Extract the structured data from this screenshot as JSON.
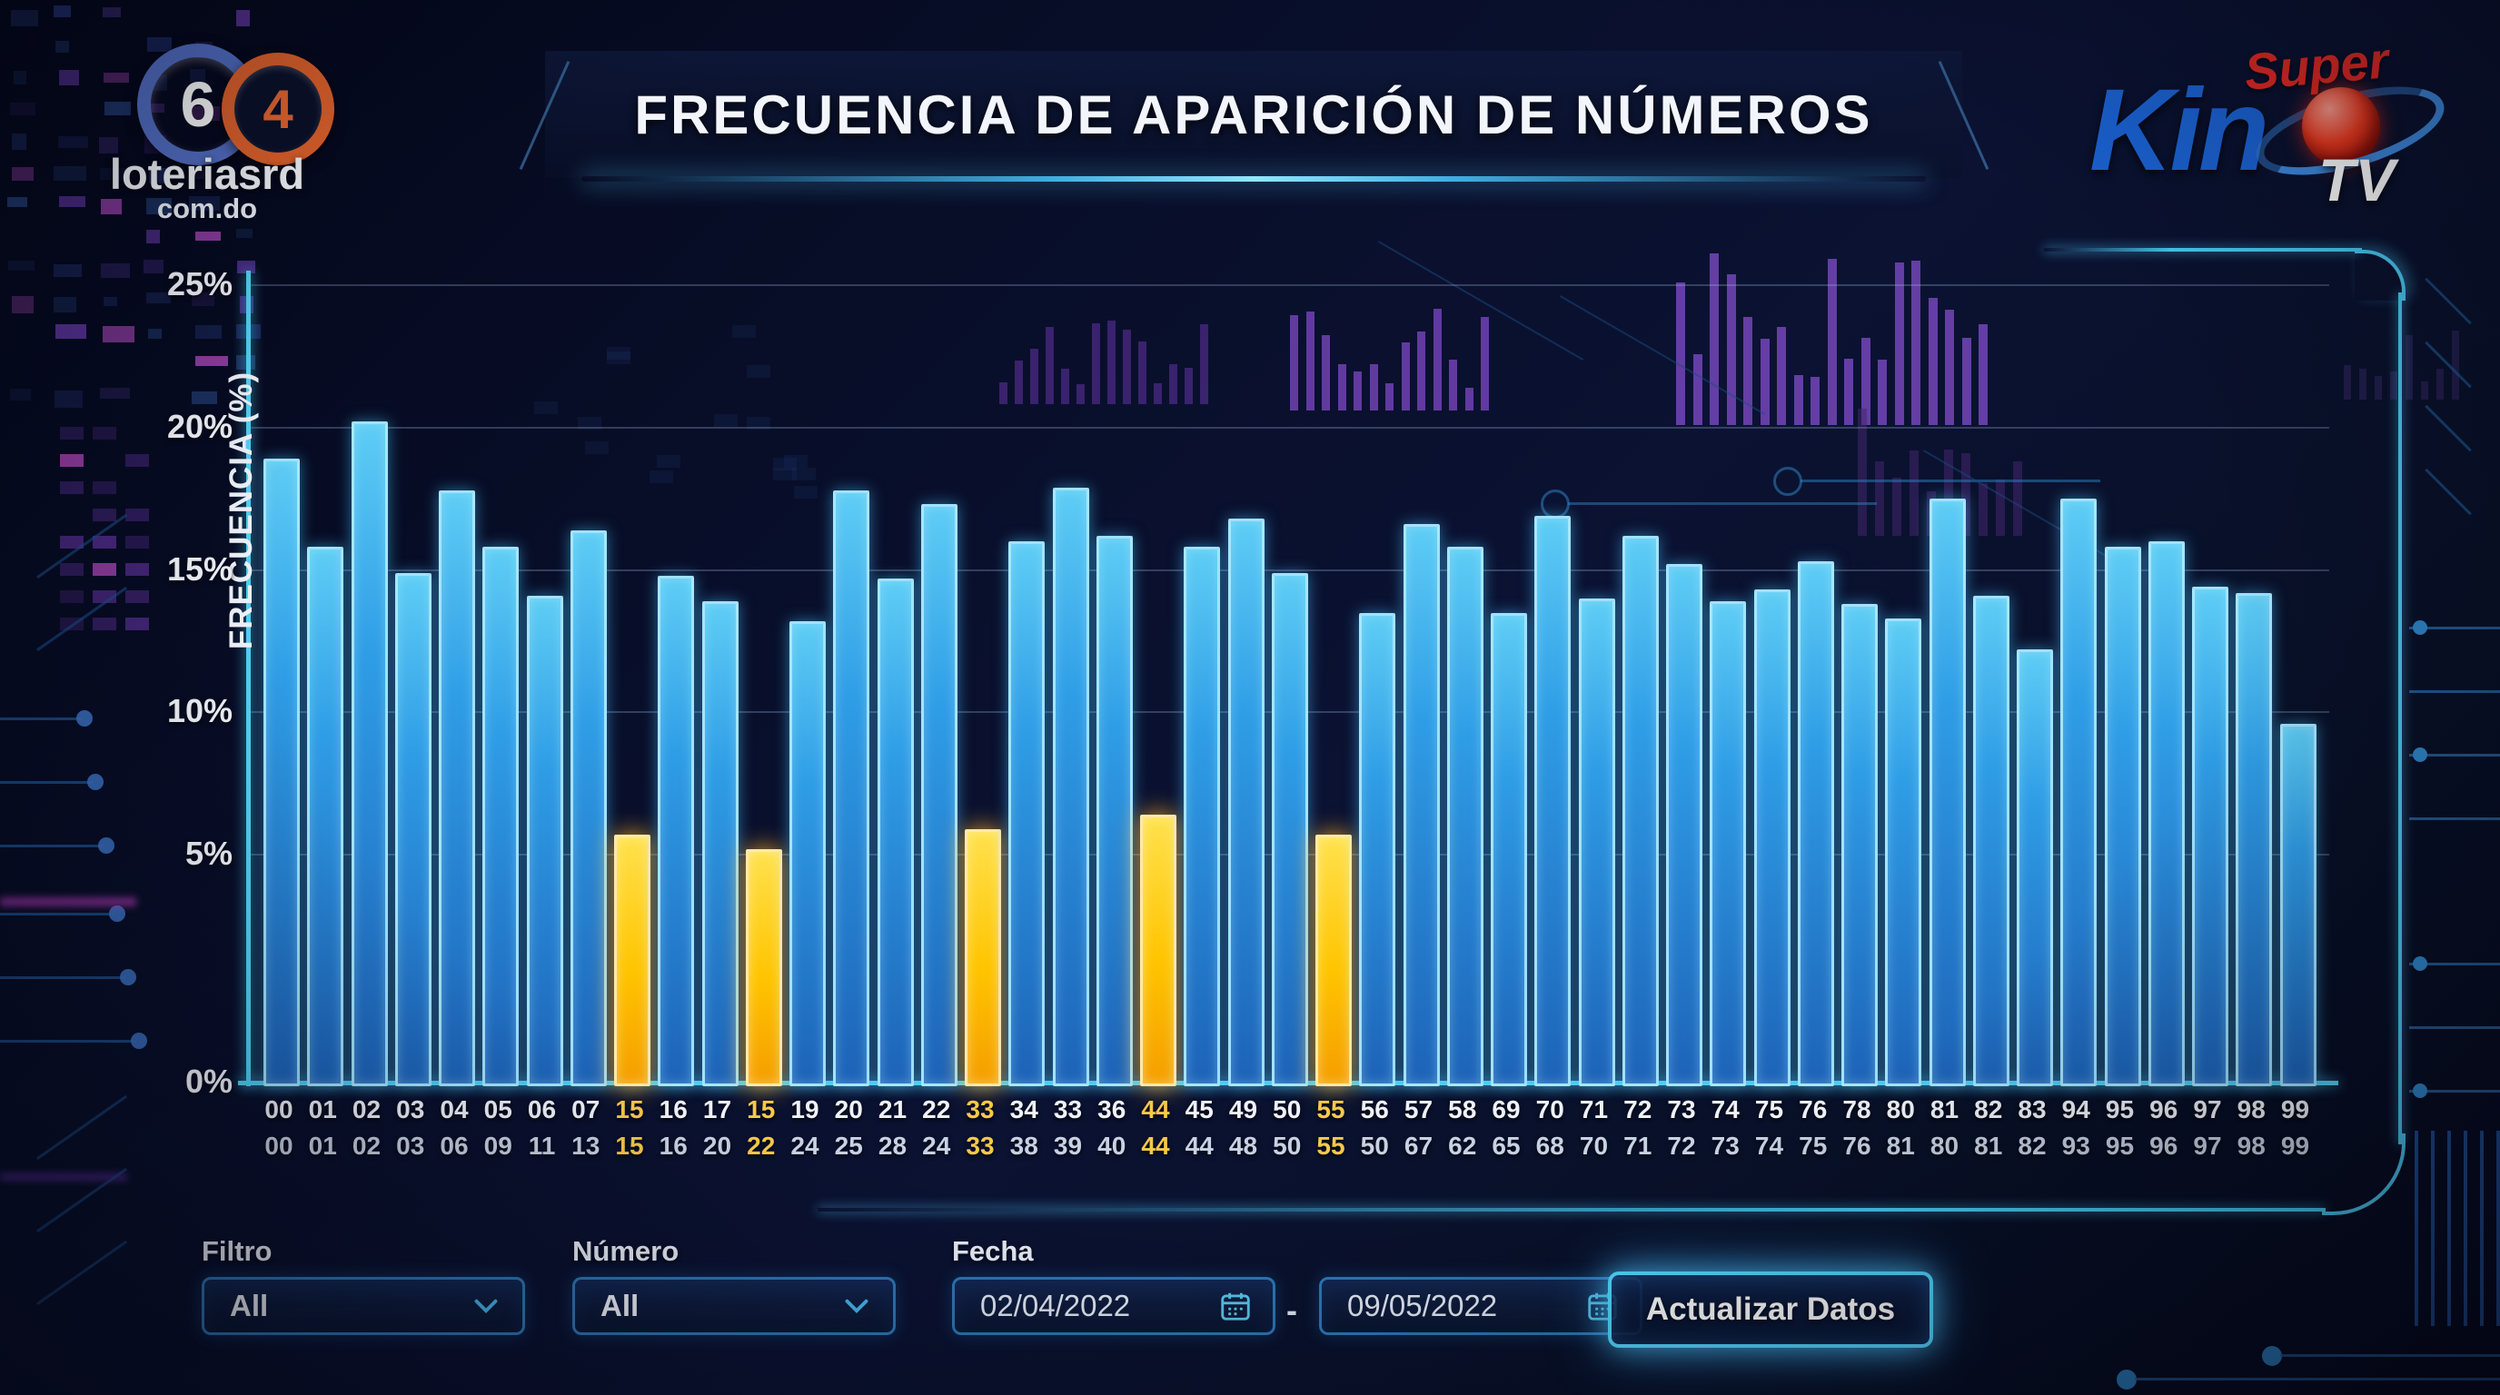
{
  "header": {
    "title": "FRECUENCIA DE APARICIÓN DE NÚMEROS"
  },
  "logo_left": {
    "digit_left": "6",
    "digit_right": "4",
    "name": "loteriasrd",
    "domain": "com.do"
  },
  "logo_right": {
    "super_label": "Super",
    "kino_label": "Kin",
    "tv_label": "TV",
    "ball_icon": "red-sphere-icon"
  },
  "colors": {
    "background": "#070b22",
    "bar_blue": "#2f9de6",
    "bar_highlight": "#ffc400",
    "axis_cyan": "#49c7ee",
    "label_yellow": "#f6c94a",
    "accent_purple": "#6a3fb0"
  },
  "chart_data": {
    "type": "bar",
    "title": "FRECUENCIA DE APARICIÓN DE NÚMEROS",
    "xlabel": "",
    "ylabel": "FRECUENCIA (%)",
    "ylim": [
      0,
      25
    ],
    "yticks": [
      "25%",
      "20%",
      "15%",
      "10%",
      "5%",
      "0%"
    ],
    "grid": true,
    "legend": "none",
    "x_axis_rows": 2,
    "bars": [
      {
        "label_row1": "00",
        "label_row2": "00",
        "value": 18.9,
        "highlight": false
      },
      {
        "label_row1": "01",
        "label_row2": "01",
        "value": 15.8,
        "highlight": false
      },
      {
        "label_row1": "02",
        "label_row2": "02",
        "value": 20.2,
        "highlight": false
      },
      {
        "label_row1": "03",
        "label_row2": "03",
        "value": 14.9,
        "highlight": false
      },
      {
        "label_row1": "04",
        "label_row2": "06",
        "value": 17.8,
        "highlight": false
      },
      {
        "label_row1": "05",
        "label_row2": "09",
        "value": 15.8,
        "highlight": false
      },
      {
        "label_row1": "06",
        "label_row2": "11",
        "value": 14.1,
        "highlight": false
      },
      {
        "label_row1": "07",
        "label_row2": "13",
        "value": 16.4,
        "highlight": false
      },
      {
        "label_row1": "15",
        "label_row2": "15",
        "value": 5.7,
        "highlight": true
      },
      {
        "label_row1": "16",
        "label_row2": "16",
        "value": 14.8,
        "highlight": false
      },
      {
        "label_row1": "17",
        "label_row2": "20",
        "value": 13.9,
        "highlight": false
      },
      {
        "label_row1": "15",
        "label_row2": "22",
        "value": 5.2,
        "highlight": true
      },
      {
        "label_row1": "19",
        "label_row2": "24",
        "value": 13.2,
        "highlight": false
      },
      {
        "label_row1": "20",
        "label_row2": "25",
        "value": 17.8,
        "highlight": false
      },
      {
        "label_row1": "21",
        "label_row2": "28",
        "value": 14.7,
        "highlight": false
      },
      {
        "label_row1": "22",
        "label_row2": "24",
        "value": 17.3,
        "highlight": false
      },
      {
        "label_row1": "33",
        "label_row2": "33",
        "value": 5.9,
        "highlight": true
      },
      {
        "label_row1": "34",
        "label_row2": "38",
        "value": 16.0,
        "highlight": false
      },
      {
        "label_row1": "33",
        "label_row2": "39",
        "value": 17.9,
        "highlight": false
      },
      {
        "label_row1": "36",
        "label_row2": "40",
        "value": 16.2,
        "highlight": false
      },
      {
        "label_row1": "44",
        "label_row2": "44",
        "value": 6.4,
        "highlight": true
      },
      {
        "label_row1": "45",
        "label_row2": "44",
        "value": 15.8,
        "highlight": false
      },
      {
        "label_row1": "49",
        "label_row2": "48",
        "value": 16.8,
        "highlight": false
      },
      {
        "label_row1": "50",
        "label_row2": "50",
        "value": 14.9,
        "highlight": false
      },
      {
        "label_row1": "55",
        "label_row2": "55",
        "value": 5.7,
        "highlight": true
      },
      {
        "label_row1": "56",
        "label_row2": "50",
        "value": 13.5,
        "highlight": false
      },
      {
        "label_row1": "57",
        "label_row2": "67",
        "value": 16.6,
        "highlight": false
      },
      {
        "label_row1": "58",
        "label_row2": "62",
        "value": 15.8,
        "highlight": false
      },
      {
        "label_row1": "69",
        "label_row2": "65",
        "value": 13.5,
        "highlight": false
      },
      {
        "label_row1": "70",
        "label_row2": "68",
        "value": 16.9,
        "highlight": false
      },
      {
        "label_row1": "71",
        "label_row2": "70",
        "value": 14.0,
        "highlight": false
      },
      {
        "label_row1": "72",
        "label_row2": "71",
        "value": 16.2,
        "highlight": false
      },
      {
        "label_row1": "73",
        "label_row2": "72",
        "value": 15.2,
        "highlight": false
      },
      {
        "label_row1": "74",
        "label_row2": "73",
        "value": 13.9,
        "highlight": false
      },
      {
        "label_row1": "75",
        "label_row2": "74",
        "value": 14.3,
        "highlight": false
      },
      {
        "label_row1": "76",
        "label_row2": "75",
        "value": 15.3,
        "highlight": false
      },
      {
        "label_row1": "78",
        "label_row2": "76",
        "value": 13.8,
        "highlight": false
      },
      {
        "label_row1": "80",
        "label_row2": "81",
        "value": 13.3,
        "highlight": false
      },
      {
        "label_row1": "81",
        "label_row2": "80",
        "value": 17.5,
        "highlight": false
      },
      {
        "label_row1": "82",
        "label_row2": "81",
        "value": 14.1,
        "highlight": false
      },
      {
        "label_row1": "83",
        "label_row2": "82",
        "value": 12.2,
        "highlight": false
      },
      {
        "label_row1": "94",
        "label_row2": "93",
        "value": 17.5,
        "highlight": false
      },
      {
        "label_row1": "95",
        "label_row2": "95",
        "value": 15.8,
        "highlight": false
      },
      {
        "label_row1": "96",
        "label_row2": "96",
        "value": 16.0,
        "highlight": false
      },
      {
        "label_row1": "97",
        "label_row2": "97",
        "value": 14.4,
        "highlight": false
      },
      {
        "label_row1": "98",
        "label_row2": "98",
        "value": 14.2,
        "highlight": false
      },
      {
        "label_row1": "99",
        "label_row2": "99",
        "value": 9.6,
        "highlight": false
      }
    ]
  },
  "filters": {
    "filtro_label": "Filtro",
    "filtro_value": "All",
    "numero_label": "Número",
    "numero_value": "All",
    "fecha_label": "Fecha",
    "date_from": "02/04/2022",
    "date_to": "09/05/2022",
    "separator": "-",
    "update_button": "Actualizar Datos",
    "icons": {
      "dropdown": "chevron-down-icon",
      "date": "calendar-icon"
    }
  }
}
